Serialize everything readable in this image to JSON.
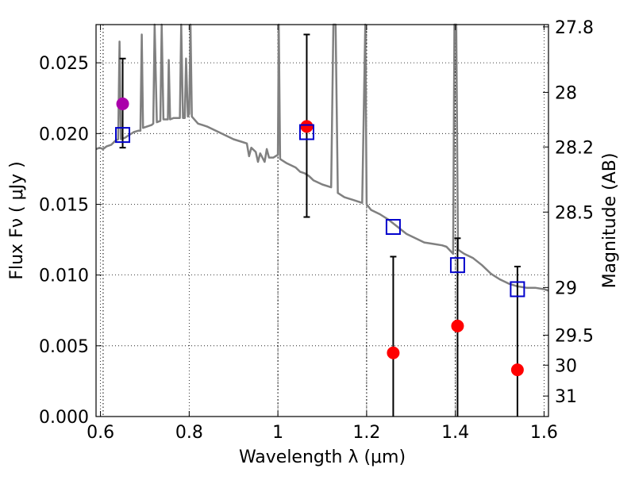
{
  "chart_data": {
    "type": "scatter",
    "xlabel": "Wavelength  λ (μm)",
    "ylabel": "Flux  Fν  ( μJy )",
    "ylabel_right": "Magnitude (AB)",
    "xlim": [
      0.59,
      1.61
    ],
    "ylim": [
      0.0,
      0.0277
    ],
    "grid": true,
    "x_ticks": [
      0.6,
      0.8,
      1.0,
      1.2,
      1.4,
      1.6
    ],
    "x_tick_labels": [
      "0.6",
      "0.8",
      "1",
      "1.2",
      "1.4",
      "1.6"
    ],
    "y_ticks": [
      0.0,
      0.005,
      0.01,
      0.015,
      0.02,
      0.025
    ],
    "y_tick_labels": [
      "0.000",
      "0.005",
      "0.010",
      "0.015",
      "0.020",
      "0.025"
    ],
    "right_ticks": [
      {
        "label": "27.8",
        "flux": 0.02754
      },
      {
        "label": "28",
        "flux": 0.02291
      },
      {
        "label": "28.2",
        "flux": 0.01905
      },
      {
        "label": "28.5",
        "flux": 0.01445
      },
      {
        "label": "29",
        "flux": 0.00912
      },
      {
        "label": "29.5",
        "flux": 0.00575
      },
      {
        "label": "30",
        "flux": 0.00363
      },
      {
        "label": "31",
        "flux": 0.00145
      }
    ],
    "vertical_dotted_lines": [
      0.606,
      1.0,
      1.2,
      1.4
    ],
    "model_spectrum": {
      "color": "#808080",
      "points": [
        [
          0.59,
          0.0189
        ],
        [
          0.598,
          0.019
        ],
        [
          0.606,
          0.0189
        ],
        [
          0.614,
          0.0191
        ],
        [
          0.624,
          0.0192
        ],
        [
          0.634,
          0.0195
        ],
        [
          0.64,
          0.0196
        ],
        [
          0.643,
          0.0265
        ],
        [
          0.646,
          0.0196
        ],
        [
          0.655,
          0.0197
        ],
        [
          0.665,
          0.0199
        ],
        [
          0.675,
          0.0201
        ],
        [
          0.685,
          0.0202
        ],
        [
          0.69,
          0.0202
        ],
        [
          0.693,
          0.027
        ],
        [
          0.696,
          0.0204
        ],
        [
          0.705,
          0.0205
        ],
        [
          0.715,
          0.0206
        ],
        [
          0.719,
          0.0207
        ],
        [
          0.722,
          0.0288
        ],
        [
          0.727,
          0.0208
        ],
        [
          0.735,
          0.0209
        ],
        [
          0.738,
          0.0288
        ],
        [
          0.742,
          0.021
        ],
        [
          0.752,
          0.021
        ],
        [
          0.754,
          0.0252
        ],
        [
          0.757,
          0.021
        ],
        [
          0.765,
          0.0211
        ],
        [
          0.775,
          0.0211
        ],
        [
          0.779,
          0.0211
        ],
        [
          0.782,
          0.0288
        ],
        [
          0.786,
          0.0211
        ],
        [
          0.79,
          0.0211
        ],
        [
          0.793,
          0.0253
        ],
        [
          0.797,
          0.0212
        ],
        [
          0.8,
          0.0214
        ],
        [
          0.803,
          0.0288
        ],
        [
          0.806,
          0.0212
        ],
        [
          0.82,
          0.0207
        ],
        [
          0.84,
          0.0205
        ],
        [
          0.86,
          0.0202
        ],
        [
          0.88,
          0.0199
        ],
        [
          0.9,
          0.0196
        ],
        [
          0.92,
          0.0194
        ],
        [
          0.93,
          0.0193
        ],
        [
          0.935,
          0.0184
        ],
        [
          0.94,
          0.019
        ],
        [
          0.95,
          0.0187
        ],
        [
          0.955,
          0.018
        ],
        [
          0.96,
          0.0186
        ],
        [
          0.97,
          0.018
        ],
        [
          0.975,
          0.0189
        ],
        [
          0.98,
          0.0183
        ],
        [
          0.99,
          0.0183
        ],
        [
          1.0,
          0.0185
        ],
        [
          1.002,
          0.0288
        ],
        [
          1.005,
          0.0182
        ],
        [
          1.02,
          0.0179
        ],
        [
          1.04,
          0.0176
        ],
        [
          1.05,
          0.0173
        ],
        [
          1.06,
          0.0172
        ],
        [
          1.07,
          0.017
        ],
        [
          1.08,
          0.0167
        ],
        [
          1.1,
          0.0164
        ],
        [
          1.12,
          0.0162
        ],
        [
          1.125,
          0.0288
        ],
        [
          1.13,
          0.0288
        ],
        [
          1.135,
          0.0158
        ],
        [
          1.15,
          0.0155
        ],
        [
          1.17,
          0.0153
        ],
        [
          1.19,
          0.0151
        ],
        [
          1.197,
          0.0288
        ],
        [
          1.2,
          0.015
        ],
        [
          1.21,
          0.0146
        ],
        [
          1.23,
          0.0143
        ],
        [
          1.25,
          0.0139
        ],
        [
          1.27,
          0.0134
        ],
        [
          1.29,
          0.0129
        ],
        [
          1.31,
          0.0126
        ],
        [
          1.33,
          0.0123
        ],
        [
          1.35,
          0.0122
        ],
        [
          1.37,
          0.0121
        ],
        [
          1.38,
          0.012
        ],
        [
          1.395,
          0.0115
        ],
        [
          1.398,
          0.0288
        ],
        [
          1.402,
          0.0288
        ],
        [
          1.406,
          0.0118
        ],
        [
          1.42,
          0.0115
        ],
        [
          1.44,
          0.0112
        ],
        [
          1.46,
          0.0107
        ],
        [
          1.48,
          0.0101
        ],
        [
          1.5,
          0.0097
        ],
        [
          1.52,
          0.0094
        ],
        [
          1.54,
          0.0092
        ],
        [
          1.56,
          0.0091
        ],
        [
          1.58,
          0.0091
        ],
        [
          1.6,
          0.009
        ],
        [
          1.61,
          0.0089
        ]
      ]
    },
    "series": [
      {
        "marker": "circle",
        "color": "#aa00aa",
        "points": [
          {
            "x": 0.65,
            "y": 0.0221,
            "err_low": 0.0031,
            "err_high": 0.0032
          }
        ]
      },
      {
        "marker": "circle",
        "color": "#ff0000",
        "points": [
          {
            "x": 1.065,
            "y": 0.0205,
            "err_low": 0.0064,
            "err_high": 0.0065
          },
          {
            "x": 1.26,
            "y": 0.0045,
            "err_low": 0.0045,
            "err_high": 0.0068
          },
          {
            "x": 1.405,
            "y": 0.0064,
            "err_low": 0.0064,
            "err_high": 0.0062
          },
          {
            "x": 1.54,
            "y": 0.0033,
            "err_low": 0.0033,
            "err_high": 0.0073
          }
        ]
      },
      {
        "marker": "square-open",
        "color": "#0000cc",
        "points": [
          {
            "x": 0.65,
            "y": 0.0199
          },
          {
            "x": 1.065,
            "y": 0.0201
          },
          {
            "x": 1.26,
            "y": 0.0134
          },
          {
            "x": 1.405,
            "y": 0.0107
          },
          {
            "x": 1.54,
            "y": 0.009
          }
        ]
      }
    ]
  }
}
